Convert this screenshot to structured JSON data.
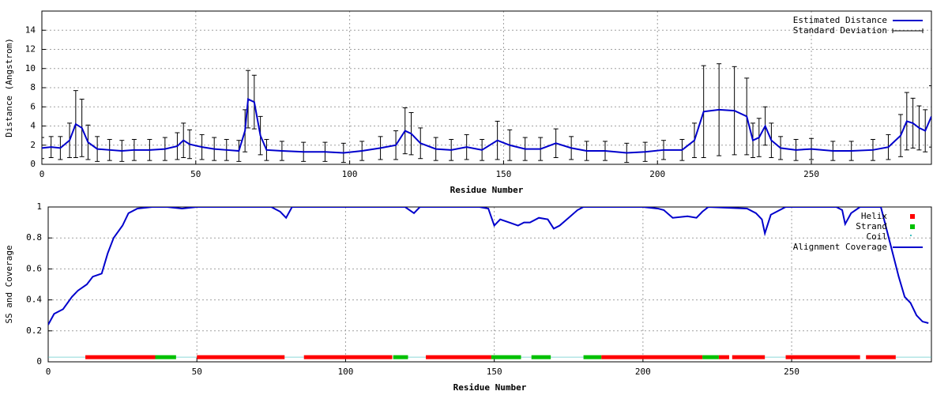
{
  "chart_data": [
    {
      "type": "line",
      "xlabel": "Residue Number",
      "ylabel": "Distance (Angstrom)",
      "xlim": [
        0,
        289
      ],
      "ylim": [
        0,
        16
      ],
      "xticks": [
        0,
        50,
        100,
        150,
        200,
        250
      ],
      "yticks": [
        0,
        2,
        4,
        6,
        8,
        10,
        12,
        14
      ],
      "grid": true,
      "legend": "upper right",
      "series": [
        {
          "name": "Estimated Distance",
          "color": "#0000cc",
          "x": [
            0,
            3,
            6,
            9,
            11,
            13,
            15,
            18,
            22,
            26,
            30,
            35,
            40,
            44,
            46,
            48,
            52,
            56,
            60,
            64,
            66,
            67,
            69,
            71,
            73,
            78,
            85,
            92,
            98,
            104,
            110,
            115,
            118,
            120,
            123,
            128,
            133,
            138,
            143,
            148,
            152,
            157,
            162,
            167,
            172,
            177,
            183,
            190,
            196,
            202,
            208,
            212,
            215,
            220,
            225,
            229,
            231,
            233,
            235,
            237,
            240,
            245,
            250,
            257,
            263,
            270,
            275,
            279,
            281,
            283,
            285,
            287,
            289
          ],
          "values": [
            1.7,
            1.8,
            1.7,
            2.5,
            4.2,
            3.8,
            2.3,
            1.6,
            1.5,
            1.4,
            1.5,
            1.5,
            1.6,
            1.9,
            2.5,
            2.1,
            1.8,
            1.6,
            1.5,
            1.4,
            3.5,
            6.8,
            6.5,
            3,
            1.5,
            1.4,
            1.3,
            1.3,
            1.2,
            1.4,
            1.7,
            2,
            3.5,
            3.2,
            2.2,
            1.6,
            1.5,
            1.8,
            1.5,
            2.5,
            2,
            1.6,
            1.6,
            2.2,
            1.7,
            1.4,
            1.4,
            1.2,
            1.3,
            1.5,
            1.5,
            2.5,
            5.5,
            5.7,
            5.6,
            5,
            2.5,
            2.8,
            4,
            2.5,
            1.7,
            1.5,
            1.6,
            1.4,
            1.4,
            1.5,
            1.8,
            3,
            4.5,
            4.3,
            3.8,
            3.5,
            5
          ]
        },
        {
          "name": "Standard Deviation",
          "color": "#0000cc",
          "values": [
            1.1,
            1.1,
            1.2,
            1.8,
            3.5,
            3,
            1.8,
            1.3,
            1.1,
            1.1,
            1.1,
            1.1,
            1.2,
            1.4,
            1.8,
            1.5,
            1.3,
            1.2,
            1.1,
            1.1,
            2.2,
            3,
            2.8,
            2,
            1.1,
            1,
            1,
            1,
            1,
            1,
            1.2,
            1.5,
            2.4,
            2.2,
            1.6,
            1.2,
            1.1,
            1.3,
            1.1,
            2,
            1.6,
            1.2,
            1.2,
            1.5,
            1.2,
            1,
            1,
            1,
            1,
            1,
            1.1,
            1.8,
            4.8,
            4.8,
            4.6,
            4,
            1.8,
            2,
            2,
            1.8,
            1.2,
            1.1,
            1.1,
            1,
            1,
            1.1,
            1.3,
            2.2,
            3,
            2.6,
            2.3,
            2.2,
            3.2
          ]
        }
      ]
    },
    {
      "type": "line",
      "xlabel": "Residue Number",
      "ylabel": "SS and Coverage",
      "xlim": [
        0,
        297
      ],
      "ylim": [
        0,
        1
      ],
      "xticks": [
        0,
        50,
        100,
        150,
        200,
        250
      ],
      "yticks": [
        0,
        0.2,
        0.4,
        0.6,
        0.8,
        1
      ],
      "grid": true,
      "legend": "upper right",
      "series": [
        {
          "name": "Helix",
          "color": "#ff0000",
          "y": 0.03,
          "ranges": [
            [
              12.5,
              36
            ],
            [
              50,
              79.5
            ],
            [
              86,
              115.7
            ],
            [
              127,
              149
            ],
            [
              186,
              220
            ],
            [
              225.5,
              229
            ],
            [
              230,
              241
            ],
            [
              248,
              273
            ],
            [
              275,
              285
            ]
          ]
        },
        {
          "name": "Strand",
          "color": "#00c000",
          "y": 0.03,
          "ranges": [
            [
              36,
              43
            ],
            [
              116,
              121
            ],
            [
              149,
              159
            ],
            [
              162.5,
              169
            ],
            [
              180,
              186
            ],
            [
              220,
              225.5
            ]
          ]
        },
        {
          "name": "Coil",
          "color": "#40c0c0",
          "y": 0.03,
          "ranges": [
            [
              0,
              12.5
            ],
            [
              43,
              50
            ],
            [
              79.5,
              86
            ],
            [
              121,
              127
            ],
            [
              159,
              162.5
            ],
            [
              169,
              180
            ],
            [
              241,
              248
            ],
            [
              285,
              297
            ]
          ]
        },
        {
          "name": "Alignment Coverage",
          "color": "#0000cc",
          "x": [
            0,
            2,
            5,
            8,
            10,
            13,
            15,
            18,
            20,
            22,
            25,
            27,
            30,
            35,
            40,
            45,
            50,
            75,
            78,
            80,
            82,
            100,
            120,
            123,
            125,
            145,
            148,
            150,
            152,
            155,
            158,
            160,
            162,
            165,
            168,
            170,
            172,
            175,
            178,
            180,
            200,
            205,
            207,
            210,
            215,
            218,
            220,
            222,
            235,
            238,
            240,
            241,
            243,
            245,
            248,
            265,
            267,
            268,
            270,
            273,
            280,
            282,
            284,
            286,
            288,
            290,
            292,
            294,
            296
          ],
          "values": [
            0.24,
            0.31,
            0.34,
            0.42,
            0.46,
            0.5,
            0.55,
            0.57,
            0.7,
            0.8,
            0.88,
            0.96,
            0.99,
            1,
            1,
            0.99,
            1,
            1,
            0.97,
            0.93,
            1,
            1,
            1,
            0.96,
            1,
            1,
            0.99,
            0.88,
            0.92,
            0.9,
            0.88,
            0.9,
            0.9,
            0.93,
            0.92,
            0.86,
            0.88,
            0.93,
            0.98,
            1,
            1,
            0.99,
            0.98,
            0.93,
            0.94,
            0.93,
            0.97,
            1,
            0.99,
            0.96,
            0.92,
            0.83,
            0.95,
            0.97,
            1,
            1,
            0.98,
            0.89,
            0.96,
            1,
            1,
            0.85,
            0.7,
            0.55,
            0.42,
            0.38,
            0.3,
            0.26,
            0.25
          ]
        }
      ]
    }
  ]
}
